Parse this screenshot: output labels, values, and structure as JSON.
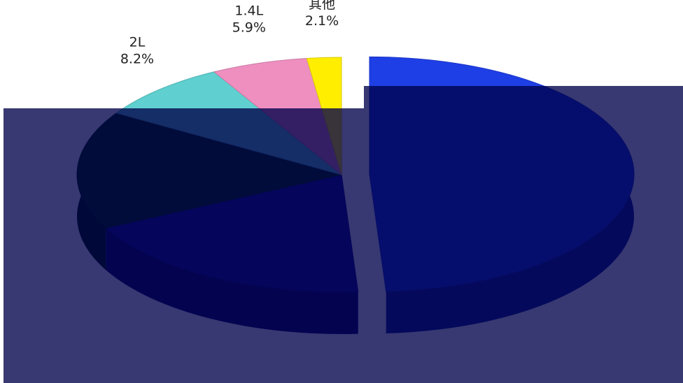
{
  "chart_data": {
    "type": "pie",
    "title": "",
    "slices": [
      {
        "label": "",
        "value": 49.0,
        "value_label": "",
        "color": "#1f3fe6"
      },
      {
        "label": "",
        "value": 18.5,
        "value_label": "",
        "color": "#1a1a9a"
      },
      {
        "label": "",
        "value": 16.3,
        "value_label": "",
        "color": "#063a06"
      },
      {
        "label": "2L",
        "value": 8.2,
        "value_label": "8.2%",
        "color": "#5fcfcf"
      },
      {
        "label": "1.4L",
        "value": 5.9,
        "value_label": "5.9%",
        "color": "#ee8fc0"
      },
      {
        "label": "其他",
        "value": 2.1,
        "value_label": "2.1%",
        "color": "#ffee00"
      }
    ],
    "start_angle_deg": -90,
    "direction": "clockwise",
    "style": "3d",
    "legend": "none",
    "labels_outside": true
  }
}
